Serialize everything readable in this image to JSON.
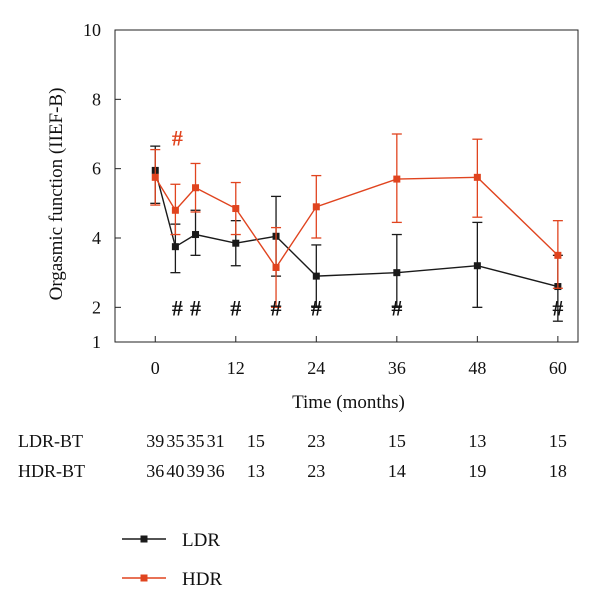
{
  "chart_data": {
    "type": "line",
    "xlabel": "Time (months)",
    "ylabel": "Orgasmic function (IIEF-B)",
    "xlim": [
      -6,
      63
    ],
    "ylim": [
      1,
      10
    ],
    "xticks": [
      0,
      12,
      24,
      36,
      48,
      60
    ],
    "xtick_labels": [
      "0",
      "12",
      "24",
      "36",
      "48",
      "60"
    ],
    "yticks": [
      1,
      2,
      4,
      6,
      8,
      10
    ],
    "ytick_labels": [
      "1",
      "2",
      "4",
      "6",
      "8",
      "10"
    ],
    "colors": {
      "LDR": "#1a1a1a",
      "HDR": "#e0441f"
    },
    "series": [
      {
        "name": "LDR",
        "x": [
          0,
          3,
          6,
          12,
          18,
          24,
          36,
          48,
          60
        ],
        "y": [
          5.95,
          3.75,
          4.1,
          3.85,
          4.05,
          2.9,
          3.0,
          3.2,
          2.6
        ],
        "err_low": [
          5.0,
          3.0,
          3.5,
          3.2,
          2.9,
          2.0,
          2.0,
          2.0,
          1.6
        ],
        "err_high": [
          6.65,
          4.4,
          4.8,
          4.5,
          5.2,
          3.8,
          4.1,
          4.45,
          3.5
        ]
      },
      {
        "name": "HDR",
        "x": [
          0,
          3,
          6,
          12,
          18,
          24,
          36,
          48,
          60
        ],
        "y": [
          5.75,
          4.8,
          5.45,
          4.85,
          3.15,
          4.9,
          5.7,
          5.75,
          3.5
        ],
        "err_low": [
          4.95,
          4.1,
          4.75,
          4.1,
          2.0,
          4.0,
          4.45,
          4.6,
          2.55
        ],
        "err_high": [
          6.55,
          5.55,
          6.15,
          5.6,
          4.3,
          5.8,
          7.0,
          6.85,
          4.5
        ]
      }
    ],
    "annotations": {
      "symbol": "#",
      "black_at": [
        3,
        6,
        12,
        18,
        24,
        36,
        60
      ],
      "black_y": 2,
      "red_at": [
        3
      ],
      "red_y": 6.9
    },
    "sample_sizes": {
      "rows": [
        {
          "label": "LDR-BT",
          "x": [
            0,
            3,
            6,
            9,
            15,
            24,
            36,
            48,
            60
          ],
          "values": [
            "39",
            "35",
            "35",
            "31",
            "15",
            "23",
            "15",
            "13",
            "15"
          ]
        },
        {
          "label": "HDR-BT",
          "x": [
            0,
            3,
            6,
            9,
            15,
            24,
            36,
            48,
            60
          ],
          "values": [
            "36",
            "40",
            "39",
            "36",
            "13",
            "23",
            "14",
            "19",
            "18"
          ]
        }
      ]
    },
    "legend": {
      "position": "bottom-left",
      "entries": [
        "LDR",
        "HDR"
      ]
    }
  }
}
